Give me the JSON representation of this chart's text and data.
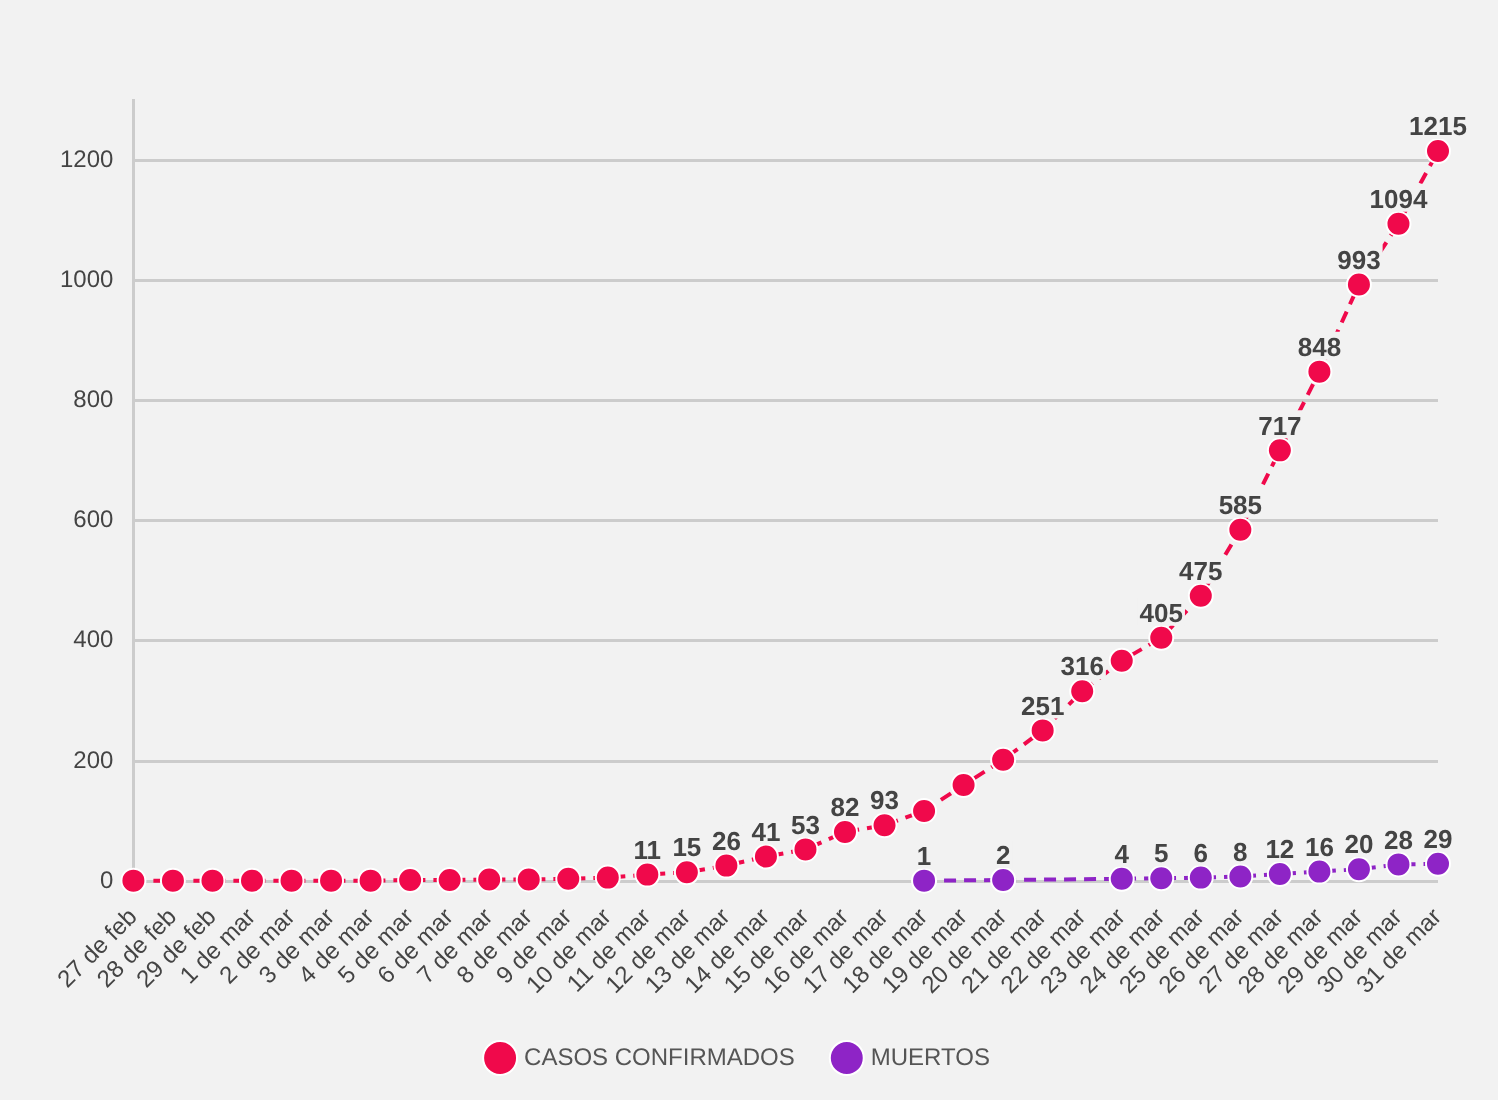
{
  "chart_data": {
    "type": "line",
    "categories": [
      "27 de feb",
      "28 de feb",
      "29 de feb",
      "1 de mar",
      "2 de mar",
      "3 de mar",
      "4 de mar",
      "5 de mar",
      "6 de mar",
      "7 de mar",
      "8 de mar",
      "9 de mar",
      "10 de mar",
      "11 de mar",
      "12 de mar",
      "13 de mar",
      "14 de mar",
      "15 de mar",
      "16 de mar",
      "17 de mar",
      "18 de mar",
      "19 de mar",
      "20 de mar",
      "21 de mar",
      "22 de mar",
      "23 de mar",
      "24 de mar",
      "25 de mar",
      "26 de mar",
      "27 de mar",
      "28 de mar",
      "29 de mar",
      "30 de mar",
      "31 de mar"
    ],
    "series": [
      {
        "name": "CASOS CONFIRMADOS",
        "color": "#f0094b",
        "values": [
          1,
          1,
          1,
          1,
          1,
          1,
          1,
          2,
          2,
          3,
          3,
          4,
          6,
          11,
          15,
          26,
          41,
          53,
          82,
          93,
          117,
          160,
          202,
          251,
          316,
          367,
          405,
          475,
          585,
          717,
          848,
          993,
          1094,
          1215
        ],
        "value_labels": [
          null,
          null,
          null,
          null,
          null,
          null,
          null,
          null,
          null,
          null,
          null,
          null,
          null,
          "11",
          "15",
          "26",
          "41",
          "53",
          "82",
          "93",
          null,
          null,
          null,
          "251",
          "316",
          null,
          "405",
          "475",
          "585",
          "717",
          "848",
          "993",
          "1094",
          "1215"
        ]
      },
      {
        "name": "MUERTOS",
        "color": "#8e24c6",
        "values": [
          null,
          null,
          null,
          null,
          null,
          null,
          null,
          null,
          null,
          null,
          null,
          null,
          null,
          null,
          null,
          null,
          null,
          null,
          null,
          null,
          1,
          null,
          2,
          null,
          null,
          4,
          5,
          6,
          8,
          12,
          16,
          20,
          28,
          29
        ],
        "value_labels": [
          null,
          null,
          null,
          null,
          null,
          null,
          null,
          null,
          null,
          null,
          null,
          null,
          null,
          null,
          null,
          null,
          null,
          null,
          null,
          null,
          "1",
          null,
          "2",
          null,
          null,
          "4",
          "5",
          "6",
          "8",
          "12",
          "16",
          "20",
          "28",
          "29"
        ]
      }
    ],
    "ylim": [
      0,
      1300
    ],
    "yticks": [
      0,
      200,
      400,
      600,
      800,
      1000,
      1200
    ],
    "grid": "y",
    "legend": "bottom",
    "marker": "circle",
    "line_style": "dashed"
  }
}
